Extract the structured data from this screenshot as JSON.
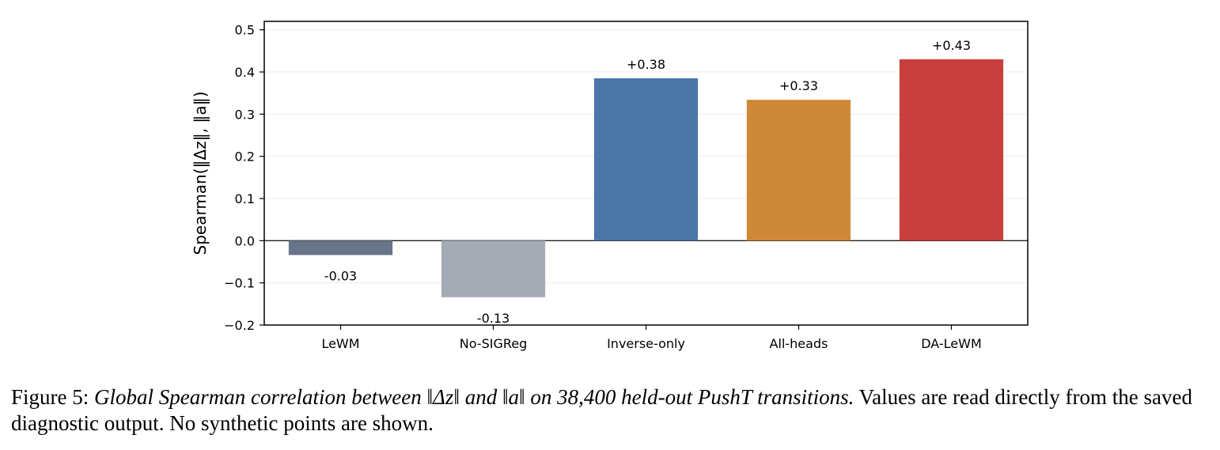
{
  "chart_data": {
    "type": "bar",
    "categories": [
      "LeWM",
      "No-SIGReg",
      "Inverse-only",
      "All-heads",
      "DA-LeWM"
    ],
    "values": [
      -0.034,
      -0.134,
      0.385,
      0.334,
      0.43
    ],
    "bar_labels": [
      "-0.03",
      "-0.13",
      "+0.38",
      "+0.33",
      "+0.43"
    ],
    "colors": [
      "#67748a",
      "#a5abb5",
      "#4a77a7",
      "#cf8836",
      "#c83f3b"
    ],
    "ylabel": "Spearman(‖Δz‖, ‖a‖)",
    "ylim": [
      -0.2,
      0.52
    ],
    "yticks": [
      -0.2,
      -0.1,
      0.0,
      0.1,
      0.2,
      0.3,
      0.4,
      0.5
    ],
    "ytick_labels": [
      "−0.2",
      "−0.1",
      "0.0",
      "0.1",
      "0.2",
      "0.3",
      "0.4",
      "0.5"
    ],
    "grid": true,
    "zero_line": true
  },
  "caption": {
    "label": "Figure 5:",
    "italic_part": "Global Spearman correlation between ‖Δz‖ and ‖a‖ on 38,400 held-out PushT transitions.",
    "rest": "Values are read directly from the saved diagnostic output. No synthetic points are shown."
  }
}
